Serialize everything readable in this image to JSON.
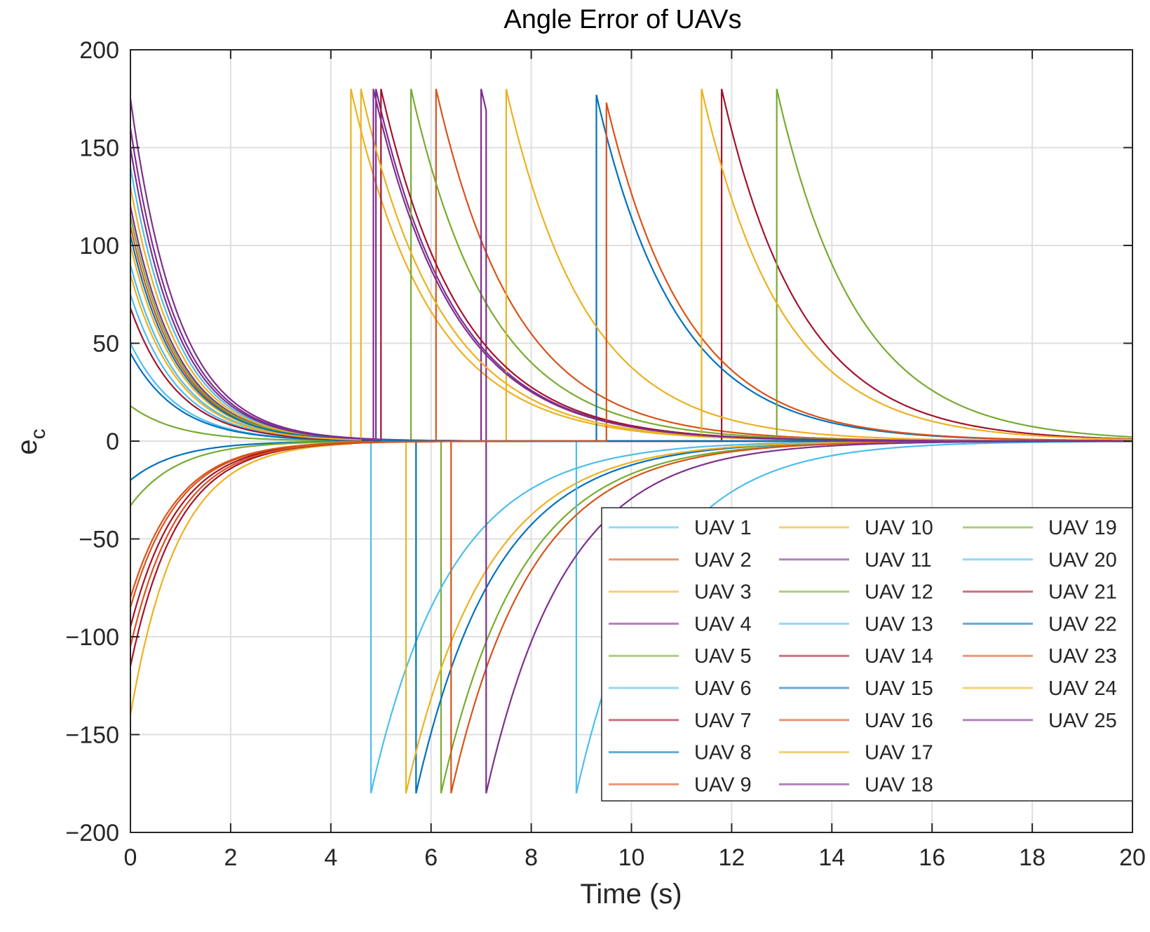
{
  "chart_data": {
    "type": "line",
    "title": "Angle Error of UAVs",
    "xlabel": "Time (s)",
    "ylabel": "e",
    "ylabel_subscript": "c",
    "xlim": [
      0,
      20
    ],
    "ylim": [
      -200,
      200
    ],
    "xticks": [
      "0",
      "2",
      "4",
      "6",
      "8",
      "10",
      "12",
      "14",
      "16",
      "18",
      "20"
    ],
    "yticks": [
      "−200",
      "−150",
      "−100",
      "−50",
      "0",
      "50",
      "100",
      "150",
      "200"
    ],
    "grid": true,
    "legend_position": "lower-right",
    "series": [
      {
        "name": "UAV 1",
        "color": "#4DBEEE",
        "segments": [
          {
            "t0": 0,
            "y0": 50,
            "tau": 0.95
          }
        ]
      },
      {
        "name": "UAV 2",
        "color": "#D95319",
        "segments": [
          {
            "t0": 0,
            "y0": -85,
            "tau": 0.95
          }
        ]
      },
      {
        "name": "UAV 3",
        "color": "#EDB120",
        "segments": [
          {
            "t0": 0,
            "y0": -140,
            "tau": 0.95
          },
          {
            "t0": 4.4,
            "y0": 180,
            "tau": 1.6
          }
        ]
      },
      {
        "name": "UAV 4",
        "color": "#7E2F8E",
        "segments": [
          {
            "t0": 0,
            "y0": 175,
            "tau": 0.95
          }
        ]
      },
      {
        "name": "UAV 5",
        "color": "#77AC30",
        "segments": [
          {
            "t0": 0,
            "y0": 18,
            "tau": 0.95
          },
          {
            "t0": 6.2,
            "y0": -180,
            "tau": 1.6
          }
        ]
      },
      {
        "name": "UAV 6",
        "color": "#4DBEEE",
        "segments": [
          {
            "t0": 0,
            "y0": 90,
            "tau": 0.95
          },
          {
            "t0": 4.8,
            "y0": -180,
            "tau": 1.6
          }
        ]
      },
      {
        "name": "UAV 7",
        "color": "#A2142F",
        "segments": [
          {
            "t0": 0,
            "y0": -95,
            "tau": 0.95
          }
        ]
      },
      {
        "name": "UAV 8",
        "color": "#0072BD",
        "segments": [
          {
            "t0": 0,
            "y0": -20,
            "tau": 0.95
          },
          {
            "t0": 5.7,
            "y0": -180,
            "tau": 1.6
          }
        ]
      },
      {
        "name": "UAV 9",
        "color": "#D95319",
        "segments": [
          {
            "t0": 0,
            "y0": 110,
            "tau": 0.95
          },
          {
            "t0": 6.1,
            "y0": 180,
            "tau": 1.6
          }
        ]
      },
      {
        "name": "UAV 10",
        "color": "#EDB120",
        "segments": [
          {
            "t0": 0,
            "y0": 100,
            "tau": 0.95
          },
          {
            "t0": 5.5,
            "y0": -180,
            "tau": 1.6
          }
        ]
      },
      {
        "name": "UAV 11",
        "color": "#7E2F8E",
        "segments": [
          {
            "t0": 0,
            "y0": 120,
            "tau": 0.95
          },
          {
            "t0": 4.9,
            "y0": 180,
            "tau": 1.6
          }
        ]
      },
      {
        "name": "UAV 12",
        "color": "#77AC30",
        "segments": [
          {
            "t0": 0,
            "y0": -33,
            "tau": 0.95
          },
          {
            "t0": 5.6,
            "y0": 180,
            "tau": 1.6
          }
        ]
      },
      {
        "name": "UAV 13",
        "color": "#4DBEEE",
        "segments": [
          {
            "t0": 0,
            "y0": 140,
            "tau": 0.95
          },
          {
            "t0": 8.9,
            "y0": -180,
            "tau": 1.6
          }
        ]
      },
      {
        "name": "UAV 14",
        "color": "#A2142F",
        "segments": [
          {
            "t0": 0,
            "y0": -115,
            "tau": 0.95
          },
          {
            "t0": 11.8,
            "y0": 180,
            "tau": 1.6
          }
        ]
      },
      {
        "name": "UAV 15",
        "color": "#0072BD",
        "segments": [
          {
            "t0": 0,
            "y0": 45,
            "tau": 0.95
          },
          {
            "t0": 9.3,
            "y0": 177,
            "tau": 1.6
          }
        ]
      },
      {
        "name": "UAV 16",
        "color": "#D95319",
        "segments": [
          {
            "t0": 0,
            "y0": -105,
            "tau": 0.95
          },
          {
            "t0": 6.4,
            "y0": -180,
            "tau": 1.6
          }
        ]
      },
      {
        "name": "UAV 17",
        "color": "#EDB120",
        "segments": [
          {
            "t0": 0,
            "y0": 130,
            "tau": 0.95
          },
          {
            "t0": 7.5,
            "y0": 180,
            "tau": 1.6
          }
        ]
      },
      {
        "name": "UAV 18",
        "color": "#7E2F8E",
        "segments": [
          {
            "t0": 0,
            "y0": 160,
            "tau": 0.95
          },
          {
            "t0": 7.0,
            "y0": 180,
            "tau": 1.6
          },
          {
            "t0": 7.1,
            "y0": -180,
            "tau": 1.6
          }
        ]
      },
      {
        "name": "UAV 19",
        "color": "#77AC30",
        "segments": [
          {
            "t0": 0,
            "y0": 115,
            "tau": 0.95
          },
          {
            "t0": 12.9,
            "y0": 180,
            "tau": 1.6
          }
        ]
      },
      {
        "name": "UAV 20",
        "color": "#4DBEEE",
        "segments": [
          {
            "t0": 0,
            "y0": 75,
            "tau": 0.95
          }
        ]
      },
      {
        "name": "UAV 21",
        "color": "#A2142F",
        "segments": [
          {
            "t0": 0,
            "y0": 68,
            "tau": 0.95
          },
          {
            "t0": 5.0,
            "y0": 180,
            "tau": 1.6
          }
        ]
      },
      {
        "name": "UAV 22",
        "color": "#0072BD",
        "segments": [
          {
            "t0": 0,
            "y0": 105,
            "tau": 0.95
          }
        ]
      },
      {
        "name": "UAV 23",
        "color": "#D95319",
        "segments": [
          {
            "t0": 0,
            "y0": -80,
            "tau": 0.95
          },
          {
            "t0": 9.5,
            "y0": 173,
            "tau": 1.6
          }
        ]
      },
      {
        "name": "UAV 24",
        "color": "#EDB120",
        "segments": [
          {
            "t0": 0,
            "y0": 85,
            "tau": 0.95
          },
          {
            "t0": 4.6,
            "y0": 180,
            "tau": 1.6
          },
          {
            "t0": 11.4,
            "y0": 180,
            "tau": 1.6
          }
        ]
      },
      {
        "name": "UAV 25",
        "color": "#7E2F8E",
        "segments": [
          {
            "t0": 0,
            "y0": 150,
            "tau": 0.95
          },
          {
            "t0": 4.85,
            "y0": 180,
            "tau": 1.6
          }
        ]
      }
    ]
  }
}
